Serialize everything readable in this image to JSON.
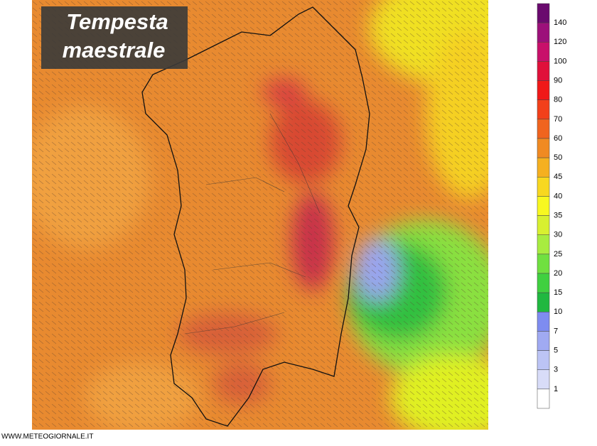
{
  "title": {
    "lines": [
      "Tempesta",
      "maestrale"
    ]
  },
  "legend": {
    "labels": [
      140,
      120,
      100,
      90,
      80,
      70,
      60,
      50,
      45,
      40,
      35,
      30,
      25,
      20,
      15,
      10,
      7,
      5,
      3,
      1
    ],
    "colors": [
      "#6a0a6e",
      "#9c107a",
      "#c8106a",
      "#e0103a",
      "#f01818",
      "#f2401a",
      "#f0641e",
      "#f08a22",
      "#f5b020",
      "#f8d820",
      "#f8f820",
      "#d8f030",
      "#a8ec40",
      "#70e040",
      "#40d040",
      "#20b840",
      "#7e8cf0",
      "#a0aaf2",
      "#bcc4f5",
      "#d8dcf8",
      "#ffffff"
    ]
  },
  "footer": "WWW.METEOGIORNALE.IT"
}
